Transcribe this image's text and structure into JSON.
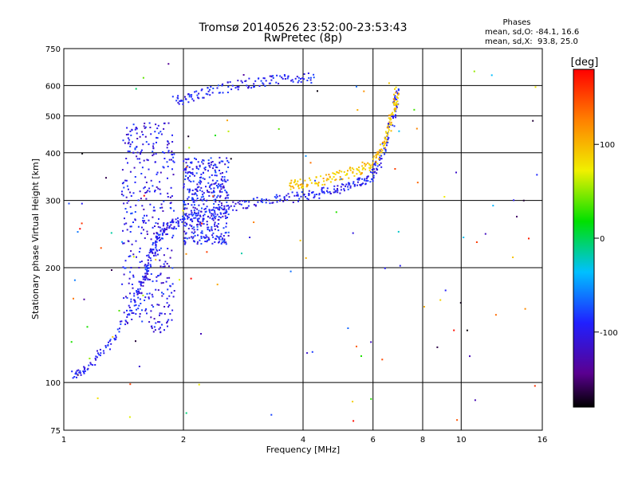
{
  "chart_data": {
    "type": "scatter",
    "title": "Tromsø 20140526 23:52:00-23:53:43",
    "subtitle": "RwPretec (8p)",
    "xlabel": "Frequency [MHz]",
    "ylabel": "Stationary phase Virtual Height [km]",
    "x_scale": "log",
    "y_scale": "log",
    "xlim": [
      1,
      16
    ],
    "ylim": [
      75,
      750
    ],
    "x_ticks": [
      "1",
      "2",
      "4",
      "6",
      "8",
      "10",
      "16"
    ],
    "x_tick_values": [
      1,
      2,
      4,
      6,
      8,
      10,
      16
    ],
    "y_ticks": [
      "75",
      "100",
      "200",
      "300",
      "400",
      "500",
      "600",
      "750"
    ],
    "y_tick_values": [
      75,
      100,
      200,
      300,
      400,
      500,
      600,
      750
    ],
    "grid": true,
    "stats": {
      "header": "Phases",
      "line_o": "mean, sd,O: -84.1, 16.6",
      "line_x": "mean, sd,X:  93.8, 25.0"
    },
    "colorbar": {
      "label": "[deg]",
      "range": [
        -180,
        180
      ],
      "ticks": [
        "100",
        "0",
        "-100"
      ],
      "tick_values": [
        100,
        0,
        -100
      ],
      "colormap": "rainbow (black-purple-blue-cyan-green-yellow-orange-red)"
    },
    "traces": [
      {
        "name": "O-mode F-layer trace",
        "phase": -95,
        "points": [
          [
            1.05,
            104
          ],
          [
            1.15,
            110
          ],
          [
            1.3,
            125
          ],
          [
            1.45,
            150
          ],
          [
            1.55,
            175
          ],
          [
            1.62,
            200
          ],
          [
            1.68,
            225
          ],
          [
            1.75,
            245
          ],
          [
            1.85,
            258
          ],
          [
            2.0,
            265
          ],
          [
            2.3,
            278
          ],
          [
            2.6,
            288
          ],
          [
            3.0,
            297
          ],
          [
            3.5,
            303
          ],
          [
            4.0,
            308
          ],
          [
            4.5,
            315
          ],
          [
            5.0,
            322
          ],
          [
            5.5,
            332
          ],
          [
            5.9,
            345
          ],
          [
            6.2,
            375
          ],
          [
            6.5,
            430
          ],
          [
            6.8,
            510
          ],
          [
            6.9,
            580
          ]
        ]
      },
      {
        "name": "X-mode F-layer trace",
        "phase": 95,
        "points": [
          [
            3.7,
            330
          ],
          [
            4.0,
            332
          ],
          [
            4.5,
            340
          ],
          [
            5.0,
            350
          ],
          [
            5.5,
            360
          ],
          [
            6.0,
            375
          ],
          [
            6.3,
            410
          ],
          [
            6.6,
            470
          ],
          [
            6.8,
            530
          ],
          [
            6.9,
            580
          ]
        ]
      },
      {
        "name": "Second-hop echoes",
        "phase": -95,
        "points": [
          [
            1.9,
            545
          ],
          [
            2.1,
            560
          ],
          [
            2.4,
            585
          ],
          [
            2.8,
            605
          ],
          [
            3.2,
            615
          ],
          [
            3.7,
            625
          ],
          [
            4.3,
            630
          ]
        ]
      },
      {
        "name": "Spread clutter 1.4-1.9 MHz",
        "phase": -100,
        "x_range": [
          1.4,
          1.9
        ],
        "y_range": [
          135,
          480
        ]
      },
      {
        "name": "Spread clutter 2.0-2.6 MHz",
        "phase": -95,
        "x_range": [
          2.0,
          2.6
        ],
        "y_range": [
          230,
          390
        ]
      }
    ]
  }
}
